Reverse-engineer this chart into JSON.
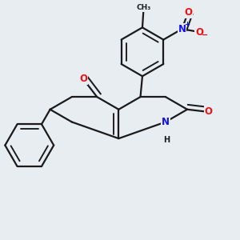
{
  "background_color": "#e8edf2",
  "bond_color": "#1a1a1a",
  "bond_width": 1.6,
  "dbo": 0.018,
  "atom_colors": {
    "O": "#ee1111",
    "N": "#1111ee",
    "C": "#1a1a1a",
    "H": "#1a1a1a"
  },
  "font_size_atom": 8.5,
  "font_size_small": 7.0,
  "font_size_charge": 6.0
}
